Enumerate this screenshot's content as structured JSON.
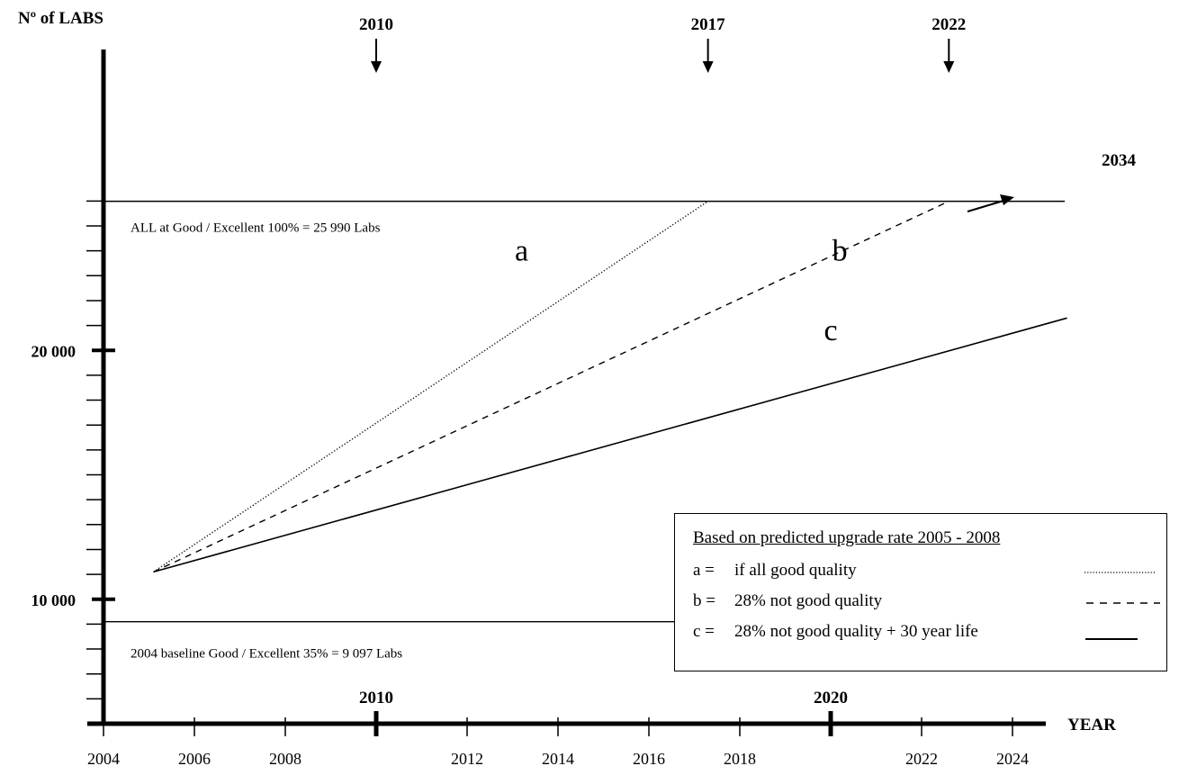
{
  "chart_data": {
    "type": "line",
    "ylabel": "Nº of LABS",
    "xlabel": "YEAR",
    "xlim": [
      2004,
      2025
    ],
    "ylim": [
      5000,
      27000
    ],
    "x_ticks": [
      2004,
      2006,
      2008,
      2012,
      2014,
      2016,
      2018,
      2022,
      2024
    ],
    "x_major_ticks": [
      2010,
      2020
    ],
    "y_major_ticks": [
      10000,
      20000
    ],
    "y_major_labels": [
      "10 000",
      "20 000"
    ],
    "y_minor_ticks": [
      6000,
      7000,
      8000,
      9000,
      11000,
      12000,
      13000,
      14000,
      15000,
      16000,
      17000,
      18000,
      19000,
      21000,
      22000,
      23000,
      24000,
      25000,
      26000
    ],
    "reference_lines": [
      {
        "y": 25990,
        "label": "ALL at Good / Excellent  100% = 25 990 Labs"
      },
      {
        "y": 9097,
        "label": "2004 baseline Good / Excellent  35% = 9 097 Labs"
      }
    ],
    "top_markers": [
      {
        "year": 2010,
        "label": "2010"
      },
      {
        "year": 2017.3,
        "label": "2017"
      },
      {
        "year": 2022.6,
        "label": "2022"
      }
    ],
    "series": [
      {
        "name": "a",
        "style": "dotted",
        "x": [
          2005.1,
          2017.3
        ],
        "y": [
          11100,
          25990
        ]
      },
      {
        "name": "b",
        "style": "dashed",
        "x": [
          2005.1,
          2022.6
        ],
        "y": [
          11100,
          25990
        ]
      },
      {
        "name": "c",
        "style": "solid",
        "x": [
          2005.1,
          2025.2
        ],
        "y": [
          11100,
          21300
        ]
      }
    ],
    "annotations": [
      {
        "text": "2034",
        "near": "series c end, arrow pointing right"
      }
    ],
    "legend": {
      "position": "bottom-right",
      "title": "Based on predicted upgrade rate 2005 - 2008",
      "items": [
        {
          "key": "a =",
          "text": "if all good quality",
          "style": "dotted"
        },
        {
          "key": "b =",
          "text": "28% not good quality",
          "style": "dashed"
        },
        {
          "key": "c =",
          "text": "28% not good quality + 30 year life",
          "style": "solid"
        }
      ]
    }
  }
}
